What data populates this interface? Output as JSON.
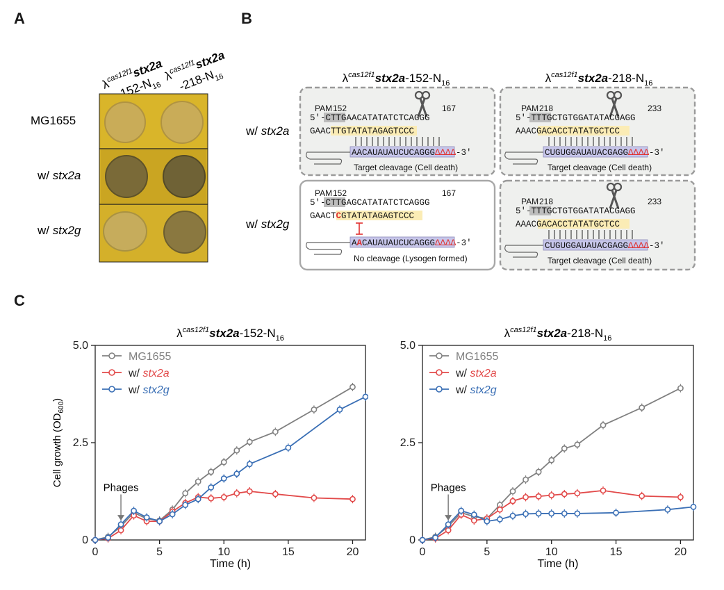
{
  "panel_a": {
    "letter": "A",
    "col_labels": [
      {
        "lambda": "λ",
        "sup": "cas12f1",
        "gene": "stx2a",
        "suffix": "-152-N",
        "sub": "16"
      },
      {
        "lambda": "λ",
        "sup": "cas12f1",
        "gene": "stx2a",
        "suffix": "-218-N",
        "sub": "16"
      }
    ],
    "rows": [
      {
        "prefix": "MG1655",
        "gene": ""
      },
      {
        "prefix": "w/ ",
        "gene": "stx2a"
      },
      {
        "prefix": "w/ ",
        "gene": "stx2g"
      }
    ]
  },
  "panel_b": {
    "letter": "B",
    "titles": [
      {
        "lambda": "λ",
        "sup": "cas12f1",
        "gene": "stx2a",
        "suffix": "-152-N",
        "sub": "16"
      },
      {
        "lambda": "λ",
        "sup": "cas12f1",
        "gene": "stx2a",
        "suffix": "-218-N",
        "sub": "16"
      }
    ],
    "row_labels": [
      {
        "prefix": "w/ ",
        "gene": "stx2a"
      },
      {
        "prefix": "w/ ",
        "gene": "stx2g"
      }
    ],
    "boxes": [
      {
        "pam_label": "PAM",
        "start": "152",
        "end": "167",
        "pam": "CTTG",
        "top_prefix": "5′-",
        "top_seq": "AACATATATCTCAGGG",
        "bottom_prefix": "GAAC",
        "bottom_seq": "TTGTATATAGAGTCCC",
        "rna": "AACAUAUAUCUCAGGG",
        "tail": "ΔΔΔΔ",
        "rna_end": "-3′",
        "caption": "Target cleavage (Cell death)",
        "cleaved": true,
        "mismatch": false
      },
      {
        "pam_label": "PAM",
        "start": "218",
        "end": "233",
        "pam": "TTTG",
        "top_prefix": "5′-",
        "top_seq": "CTGTGGATATACGAGG",
        "bottom_prefix": "AAAC",
        "bottom_seq": "GACACCTATATGCTCC",
        "rna": "CUGUGGAUAUACGAGG",
        "tail": "ΔΔΔΔ",
        "rna_end": "-3′",
        "caption": "Target cleavage (Cell death)",
        "cleaved": true,
        "mismatch": false
      },
      {
        "pam_label": "PAM",
        "start": "152",
        "end": "167",
        "pam": "CTTG",
        "top_prefix": "5′-",
        "top_seq": "AGCATATATCTCAGGG",
        "bottom_prefix": "GAACT",
        "bottom_mm": "C",
        "bottom_seq": "GTATATAGAGTCCC",
        "rna_a": "A",
        "rna_mm": "A",
        "rna": "CAUAUAUCUCAGGG",
        "tail": "ΔΔΔΔ",
        "rna_end": "-3′",
        "caption": "No cleavage (Lysogen formed)",
        "cleaved": false,
        "mismatch": true
      },
      {
        "pam_label": "PAM",
        "start": "218",
        "end": "233",
        "pam": "TTTG",
        "top_prefix": "5′-",
        "top_seq": "CTGTGGATATACGAGG",
        "bottom_prefix": "AAAC",
        "bottom_seq": "GACACCTATATGCTCC",
        "rna": "CUGUGGAUAUACGAGG",
        "tail": "ΔΔΔΔ",
        "rna_end": "-3′",
        "caption": "Target cleavage (Cell death)",
        "cleaved": true,
        "mismatch": false
      }
    ]
  },
  "panel_c": {
    "letter": "C"
  },
  "chart_data": [
    {
      "type": "line",
      "title": {
        "lambda": "λ",
        "sup": "cas12f1",
        "gene": "stx2a",
        "suffix": "-152-N",
        "sub": "16"
      },
      "xlabel": "Time (h)",
      "ylabel": "Cell growth (OD",
      "ylabel_sub": "600",
      "ylabel_end": ")",
      "xlim": [
        0,
        21
      ],
      "ylim": [
        0,
        5.0
      ],
      "xticks": [
        "0",
        "5",
        "10",
        "15",
        "20"
      ],
      "yticks": [
        "0",
        "2.5",
        "5.0"
      ],
      "annotation": {
        "text": "Phages",
        "x": 2
      },
      "series": [
        {
          "name": "MG1655",
          "prefix": "",
          "gene": "",
          "color": "#808080",
          "x": [
            0,
            1,
            2,
            3,
            4,
            5,
            6,
            7,
            8,
            9,
            10,
            11,
            12,
            14,
            17,
            20
          ],
          "y": [
            0,
            0.08,
            0.35,
            0.7,
            0.55,
            0.5,
            0.78,
            1.2,
            1.5,
            1.75,
            2.0,
            2.3,
            2.52,
            2.78,
            3.35,
            3.93
          ]
        },
        {
          "name": "w/ stx2a",
          "prefix": "w/ ",
          "gene": "stx2a",
          "color": "#e24a4a",
          "x": [
            0,
            1,
            2,
            3,
            4,
            5,
            6,
            7,
            8,
            9,
            10,
            11,
            12,
            14,
            17,
            20
          ],
          "y": [
            0,
            0.04,
            0.25,
            0.63,
            0.48,
            0.48,
            0.73,
            0.95,
            1.1,
            1.07,
            1.1,
            1.2,
            1.25,
            1.18,
            1.08,
            1.05
          ]
        },
        {
          "name": "w/ stx2g",
          "prefix": "w/ ",
          "gene": "stx2g",
          "color": "#3a6fb5",
          "x": [
            0,
            1,
            2,
            3,
            4,
            5,
            6,
            7,
            8,
            9,
            10,
            11,
            12,
            15,
            19,
            21
          ],
          "y": [
            0,
            0.06,
            0.4,
            0.75,
            0.58,
            0.48,
            0.66,
            0.9,
            1.05,
            1.35,
            1.58,
            1.7,
            1.95,
            2.37,
            3.35,
            3.68
          ]
        }
      ]
    },
    {
      "type": "line",
      "title": {
        "lambda": "λ",
        "sup": "cas12f1",
        "gene": "stx2a",
        "suffix": "-218-N",
        "sub": "16"
      },
      "xlabel": "Time (h)",
      "ylabel": "",
      "xlim": [
        0,
        21
      ],
      "ylim": [
        0,
        5.0
      ],
      "xticks": [
        "0",
        "5",
        "10",
        "15",
        "20"
      ],
      "yticks": [
        "0",
        "2.5",
        "5.0"
      ],
      "annotation": {
        "text": "Phages",
        "x": 2
      },
      "series": [
        {
          "name": "MG1655",
          "prefix": "",
          "gene": "",
          "color": "#808080",
          "x": [
            0,
            1,
            2,
            3,
            4,
            5,
            6,
            7,
            8,
            9,
            10,
            11,
            12,
            14,
            17,
            20
          ],
          "y": [
            0,
            0.08,
            0.35,
            0.7,
            0.6,
            0.55,
            0.9,
            1.25,
            1.55,
            1.75,
            2.05,
            2.35,
            2.45,
            2.95,
            3.4,
            3.9
          ]
        },
        {
          "name": "w/ stx2a",
          "prefix": "w/ ",
          "gene": "stx2a",
          "color": "#e24a4a",
          "x": [
            0,
            1,
            2,
            3,
            4,
            5,
            6,
            7,
            8,
            9,
            10,
            11,
            12,
            14,
            17,
            20
          ],
          "y": [
            0,
            0.04,
            0.25,
            0.65,
            0.5,
            0.55,
            0.78,
            1.0,
            1.1,
            1.12,
            1.15,
            1.18,
            1.2,
            1.27,
            1.13,
            1.1
          ]
        },
        {
          "name": "w/ stx2g",
          "prefix": "w/ ",
          "gene": "stx2g",
          "color": "#3a6fb5",
          "x": [
            0,
            1,
            2,
            3,
            4,
            5,
            6,
            7,
            8,
            9,
            10,
            11,
            12,
            15,
            19,
            21
          ],
          "y": [
            0,
            0.06,
            0.4,
            0.75,
            0.65,
            0.48,
            0.53,
            0.62,
            0.67,
            0.68,
            0.68,
            0.68,
            0.68,
            0.7,
            0.78,
            0.85
          ]
        }
      ]
    }
  ]
}
